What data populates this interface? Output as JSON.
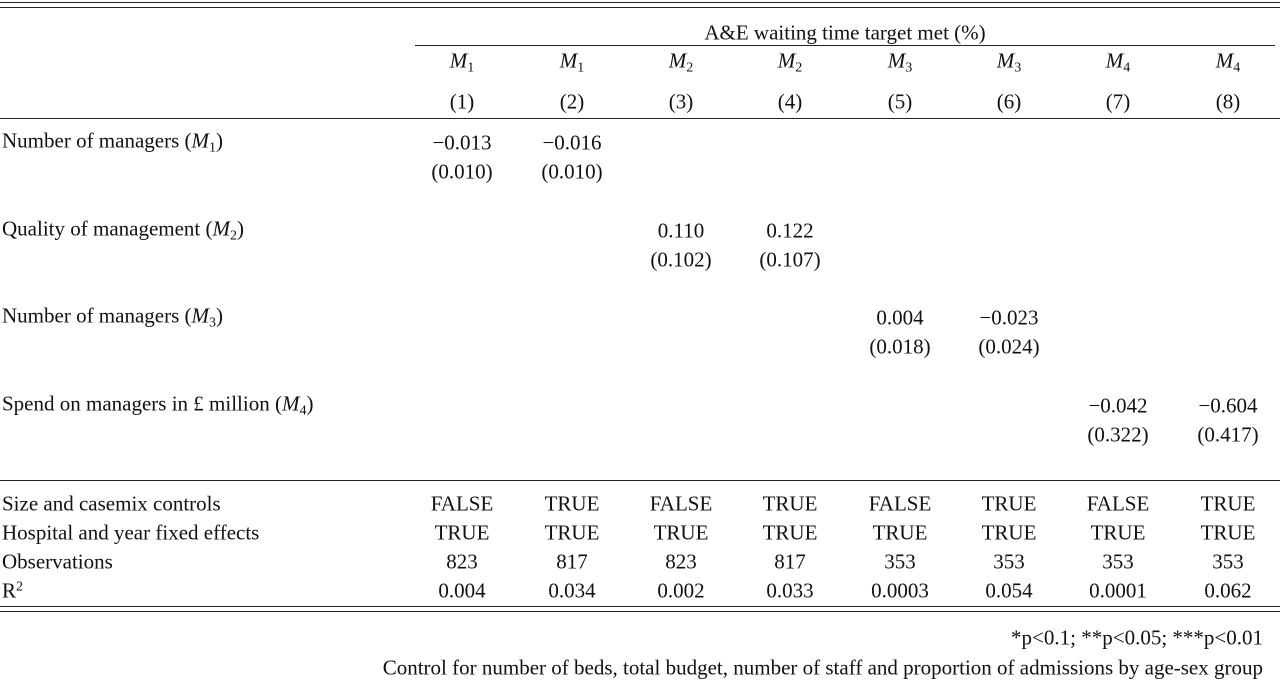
{
  "header": {
    "title": "A&E waiting time target met (%)",
    "models": [
      {
        "var": "M",
        "sub": "1"
      },
      {
        "var": "M",
        "sub": "1"
      },
      {
        "var": "M",
        "sub": "2"
      },
      {
        "var": "M",
        "sub": "2"
      },
      {
        "var": "M",
        "sub": "3"
      },
      {
        "var": "M",
        "sub": "3"
      },
      {
        "var": "M",
        "sub": "4"
      },
      {
        "var": "M",
        "sub": "4"
      }
    ],
    "numbers": [
      "(1)",
      "(2)",
      "(3)",
      "(4)",
      "(5)",
      "(6)",
      "(7)",
      "(8)"
    ]
  },
  "rows": [
    {
      "label": {
        "before": "Number of managers (",
        "var": "M",
        "sub": "1",
        "after": ")"
      },
      "coef": [
        "−0.013",
        "−0.016",
        null,
        null,
        null,
        null,
        null,
        null
      ],
      "se": [
        "(0.010)",
        "(0.010)",
        null,
        null,
        null,
        null,
        null,
        null
      ]
    },
    {
      "label": {
        "before": "Quality of management (",
        "var": "M",
        "sub": "2",
        "after": ")"
      },
      "coef": [
        null,
        null,
        "0.110",
        "0.122",
        null,
        null,
        null,
        null
      ],
      "se": [
        null,
        null,
        "(0.102)",
        "(0.107)",
        null,
        null,
        null,
        null
      ]
    },
    {
      "label": {
        "before": "Number of managers (",
        "var": "M",
        "sub": "3",
        "after": ")"
      },
      "coef": [
        null,
        null,
        null,
        null,
        "0.004",
        "−0.023",
        null,
        null
      ],
      "se": [
        null,
        null,
        null,
        null,
        "(0.018)",
        "(0.024)",
        null,
        null
      ]
    },
    {
      "label": {
        "before": "Spend on managers in £ million (",
        "var": "M",
        "sub": "4",
        "after": ")"
      },
      "coef": [
        null,
        null,
        null,
        null,
        null,
        null,
        "−0.042",
        "−0.604"
      ],
      "se": [
        null,
        null,
        null,
        null,
        null,
        null,
        "(0.322)",
        "(0.417)"
      ]
    }
  ],
  "stats": [
    {
      "label": {
        "text": "Size and casemix controls"
      },
      "values": [
        "FALSE",
        "TRUE",
        "FALSE",
        "TRUE",
        "FALSE",
        "TRUE",
        "FALSE",
        "TRUE"
      ]
    },
    {
      "label": {
        "text": "Hospital and year fixed effects"
      },
      "values": [
        "TRUE",
        "TRUE",
        "TRUE",
        "TRUE",
        "TRUE",
        "TRUE",
        "TRUE",
        "TRUE"
      ]
    },
    {
      "label": {
        "text": "Observations"
      },
      "values": [
        "823",
        "817",
        "823",
        "817",
        "353",
        "353",
        "353",
        "353"
      ]
    },
    {
      "label": {
        "base": "R",
        "sup": "2"
      },
      "values": [
        "0.004",
        "0.034",
        "0.002",
        "0.033",
        "0.0003",
        "0.054",
        "0.0001",
        "0.062"
      ]
    }
  ],
  "notes": [
    "*p<0.1; **p<0.05; ***p<0.01",
    "Control for number of beds, total budget, number of staff and proportion of admissions by age-sex group"
  ]
}
